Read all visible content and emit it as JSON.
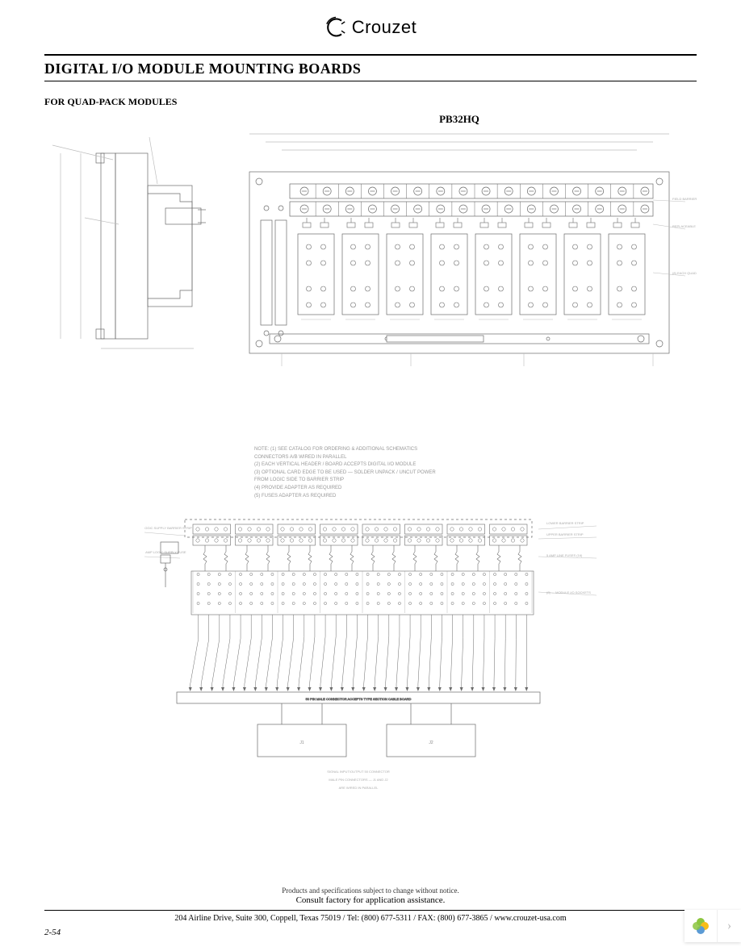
{
  "brand": {
    "name": "Crouzet",
    "logo_stroke": "#000000"
  },
  "title": "DIGITAL I/O MODULE MOUNTING BOARDS",
  "subhead": "FOR QUAD-PACK MODULES",
  "model": "PB32HQ",
  "colors": {
    "page_bg": "#ffffff",
    "stroke": "#6b6b6b",
    "stroke_light": "#bdbdbd",
    "text": "#000000",
    "faint_text": "#9a9a9a"
  },
  "top_diagram": {
    "side_view": {
      "labels": [
        "",
        ""
      ],
      "dim_labels": [
        "",
        "",
        ""
      ]
    },
    "front_view": {
      "overall_dim_labels": [
        "",
        ""
      ],
      "module_count": 8,
      "top_terminal_groups": 16,
      "callouts_right": [
        "FIELD BARRIER STRIP SEE NOTE (4)",
        "REPLACEABLE FUSE — USE ORDCO5 SEE NOTE (3)",
        "(8) EACH QUAD-PACKMODULE I/O SOCKETS SEE NOTE (2)"
      ],
      "callouts_left": [
        "",
        "",
        "",
        ""
      ],
      "callouts_bottom": [
        "",
        "",
        "",
        ""
      ]
    }
  },
  "notes": [
    "NOTE: (1) SEE CATALOG FOR ORDERING & ADDITIONAL SCHEMATICS",
    "CONNECTORS A/B WIRED IN PARALLEL",
    "(2) EACH VERTICAL HEADER / BOARD ACCEPTS DIGITAL I/O MODULE",
    "(3) OPTIONAL CARD EDGE TO BE USED — SOLDER UNPACK / UNCUT POWER",
    "FROM LOGIC SIDE TO BARRIER STRIP",
    "(4) PROVIDE ADAPTER AS REQUIRED",
    "(5) FUSES ADAPTER AS REQUIRED"
  ],
  "schematic": {
    "labels_left": [
      "LOGIC SUPPLY BARRIER STRIP",
      "5 AMP LOGIC SUPPLY FUSE"
    ],
    "labels_right": [
      "LOWER BARRIER STRIP",
      "UPPER BARRIER STRIP",
      "5 AMP LINE FUSES (16)",
      "(8) — MODULE I/O SOCKETS"
    ],
    "connector_label": "50 PIN MALE CONNECTOR ACCEPTS TYPE SECTION CABLE BOARD",
    "bottom_boxes": [
      "J1",
      "J2"
    ],
    "bottom_caption_lines": [
      "SIGNAL INPUT/OUTPUT 50 CONNECTOR",
      "MALE PIN CONNECTORS — J1 AND J2",
      "ARE WIRED IN PARALLEL"
    ],
    "module_groups": 8,
    "wires": 32
  },
  "footer": {
    "note1": "Products and specifications subject to change without notice.",
    "note2": "Consult factory for application assistance.",
    "address": "204 Airline Drive, Suite 300, Coppell, Texas 75019 / Tel: (800) 677-5311 / FAX: (800) 677-3865 / www.crouzet-usa.com",
    "page_num": "2-54"
  },
  "widget": {
    "petal_colors": [
      "#8cc63f",
      "#f7bd19",
      "#5b9bd5",
      "#e06666"
    ],
    "arrow": "›"
  }
}
